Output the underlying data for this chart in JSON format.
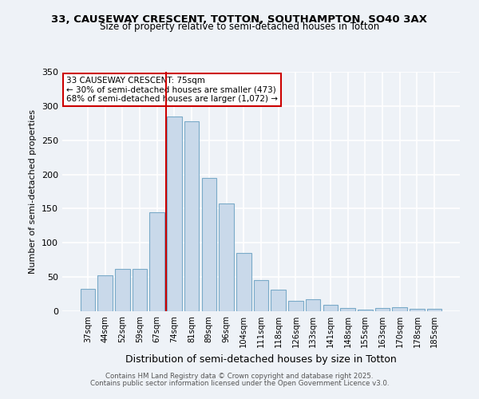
{
  "title1": "33, CAUSEWAY CRESCENT, TOTTON, SOUTHAMPTON, SO40 3AX",
  "title2": "Size of property relative to semi-detached houses in Totton",
  "xlabel": "Distribution of semi-detached houses by size in Totton",
  "ylabel": "Number of semi-detached properties",
  "categories": [
    "37sqm",
    "44sqm",
    "52sqm",
    "59sqm",
    "67sqm",
    "74sqm",
    "81sqm",
    "89sqm",
    "96sqm",
    "104sqm",
    "111sqm",
    "118sqm",
    "126sqm",
    "133sqm",
    "141sqm",
    "148sqm",
    "155sqm",
    "163sqm",
    "170sqm",
    "178sqm",
    "185sqm"
  ],
  "values": [
    33,
    52,
    62,
    62,
    145,
    285,
    278,
    195,
    158,
    85,
    45,
    32,
    15,
    17,
    9,
    5,
    2,
    5,
    6,
    3,
    3
  ],
  "bar_color": "#c9d9ea",
  "bar_edge_color": "#7aaac8",
  "vline_color": "#cc0000",
  "vline_index": 5,
  "annotation_title": "33 CAUSEWAY CRESCENT: 75sqm",
  "annotation_line1": "← 30% of semi-detached houses are smaller (473)",
  "annotation_line2": "68% of semi-detached houses are larger (1,072) →",
  "annotation_box_edge_color": "#cc0000",
  "ylim": [
    0,
    350
  ],
  "yticks": [
    0,
    50,
    100,
    150,
    200,
    250,
    300,
    350
  ],
  "footer1": "Contains HM Land Registry data © Crown copyright and database right 2025.",
  "footer2": "Contains public sector information licensed under the Open Government Licence v3.0.",
  "bg_color": "#eef2f7"
}
